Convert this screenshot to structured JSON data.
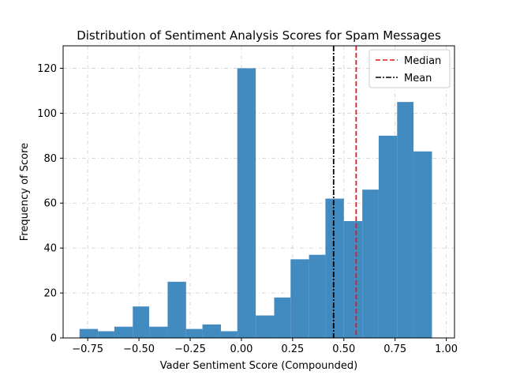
{
  "chart_data": {
    "type": "bar",
    "subtype": "histogram",
    "title": "Distribution of Sentiment Analysis Scores for Spam Messages",
    "xlabel": "Vader Sentiment Score (Compounded)",
    "ylabel": "Frequency of Score",
    "xlim": [
      -0.87,
      1.04
    ],
    "ylim": [
      0,
      130
    ],
    "xticks": [
      -0.75,
      -0.5,
      -0.25,
      0.0,
      0.25,
      0.5,
      0.75,
      1.0
    ],
    "xtick_labels": [
      "−0.75",
      "−0.50",
      "−0.25",
      "0.00",
      "0.25",
      "0.50",
      "0.75",
      "1.00"
    ],
    "yticks": [
      0,
      20,
      40,
      60,
      80,
      100,
      120
    ],
    "ytick_labels": [
      "0",
      "20",
      "40",
      "60",
      "80",
      "100",
      "120"
    ],
    "grid": true,
    "bar_color": "#428bc0",
    "bins": [
      {
        "x0": -0.79,
        "x1": -0.7,
        "value": 4
      },
      {
        "x0": -0.7,
        "x1": -0.62,
        "value": 3
      },
      {
        "x0": -0.62,
        "x1": -0.53,
        "value": 5
      },
      {
        "x0": -0.53,
        "x1": -0.45,
        "value": 14
      },
      {
        "x0": -0.45,
        "x1": -0.36,
        "value": 5
      },
      {
        "x0": -0.36,
        "x1": -0.27,
        "value": 25
      },
      {
        "x0": -0.27,
        "x1": -0.19,
        "value": 4
      },
      {
        "x0": -0.19,
        "x1": -0.1,
        "value": 6
      },
      {
        "x0": -0.1,
        "x1": -0.02,
        "value": 3
      },
      {
        "x0": -0.02,
        "x1": 0.07,
        "value": 120
      },
      {
        "x0": 0.07,
        "x1": 0.16,
        "value": 10
      },
      {
        "x0": 0.16,
        "x1": 0.24,
        "value": 18
      },
      {
        "x0": 0.24,
        "x1": 0.33,
        "value": 35
      },
      {
        "x0": 0.33,
        "x1": 0.41,
        "value": 37
      },
      {
        "x0": 0.41,
        "x1": 0.5,
        "value": 62
      },
      {
        "x0": 0.5,
        "x1": 0.59,
        "value": 52
      },
      {
        "x0": 0.59,
        "x1": 0.67,
        "value": 66
      },
      {
        "x0": 0.67,
        "x1": 0.76,
        "value": 90
      },
      {
        "x0": 0.76,
        "x1": 0.84,
        "value": 105
      },
      {
        "x0": 0.84,
        "x1": 0.93,
        "value": 83
      }
    ],
    "reference_lines": [
      {
        "name": "Median",
        "x": 0.56,
        "color": "#e41a1c",
        "style": "dashed"
      },
      {
        "name": "Mean",
        "x": 0.45,
        "color": "#000000",
        "style": "dashdot"
      }
    ],
    "legend": {
      "position": "top-right",
      "entries": [
        "Median",
        "Mean"
      ]
    }
  }
}
